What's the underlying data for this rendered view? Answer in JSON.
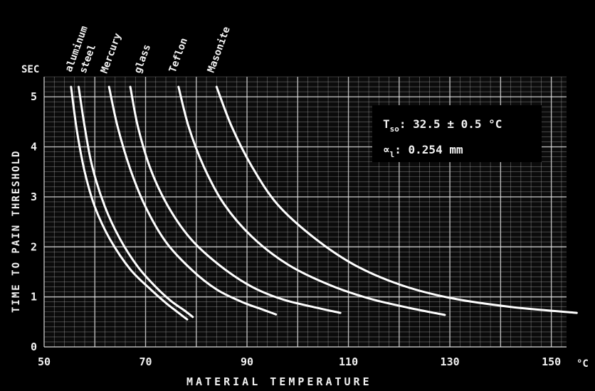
{
  "chart_data": {
    "type": "line",
    "title": "",
    "xlabel": "MATERIAL TEMPERATURE",
    "ylabel": "TIME TO PAIN THRESHOLD",
    "x_unit": "°C",
    "y_unit": "SEC",
    "xlim": [
      50,
      153
    ],
    "ylim": [
      0,
      5.4
    ],
    "x_ticks": [
      50,
      70,
      90,
      110,
      130,
      150
    ],
    "y_ticks": [
      0,
      1,
      2,
      3,
      4,
      5
    ],
    "grid": true,
    "annotation": {
      "line1_label": "T",
      "line1_sub": "so",
      "line1_value": ": 32.5 ± 0.5 °C",
      "line2_label": "∝",
      "line2_sub": "l",
      "line2_value": ": 0.254 mm"
    },
    "series": [
      {
        "name": "aluminum",
        "x": [
          55.3,
          56.5,
          58,
          60,
          63,
          67,
          71,
          74,
          76,
          78.2
        ],
        "y": [
          5.2,
          4.3,
          3.5,
          2.8,
          2.15,
          1.55,
          1.15,
          0.88,
          0.72,
          0.55
        ]
      },
      {
        "name": "steel",
        "x": [
          56.8,
          58,
          59.5,
          62,
          65,
          68.5,
          72,
          75,
          77.5,
          79.3
        ],
        "y": [
          5.2,
          4.4,
          3.6,
          2.8,
          2.15,
          1.6,
          1.2,
          0.92,
          0.74,
          0.6
        ]
      },
      {
        "name": "Mercury",
        "x": [
          62.8,
          64.5,
          67,
          70,
          74,
          79,
          84,
          89,
          93,
          95.7
        ],
        "y": [
          5.2,
          4.4,
          3.55,
          2.8,
          2.1,
          1.55,
          1.15,
          0.9,
          0.75,
          0.65
        ]
      },
      {
        "name": "glass",
        "x": [
          67,
          68.5,
          71,
          74.5,
          79,
          85,
          91,
          97,
          103,
          108.4
        ],
        "y": [
          5.2,
          4.4,
          3.55,
          2.8,
          2.15,
          1.6,
          1.2,
          0.95,
          0.8,
          0.68
        ]
      },
      {
        "name": "Teflon",
        "x": [
          76.5,
          78.5,
          81.5,
          85.5,
          91,
          98,
          106,
          114,
          122,
          129
        ],
        "y": [
          5.2,
          4.4,
          3.6,
          2.85,
          2.2,
          1.65,
          1.25,
          0.97,
          0.78,
          0.64
        ]
      },
      {
        "name": "Masonite",
        "x": [
          84,
          87,
          91,
          96,
          103,
          111,
          120,
          130,
          142,
          155
        ],
        "y": [
          5.2,
          4.4,
          3.6,
          2.85,
          2.2,
          1.65,
          1.25,
          0.98,
          0.8,
          0.68
        ]
      }
    ]
  }
}
